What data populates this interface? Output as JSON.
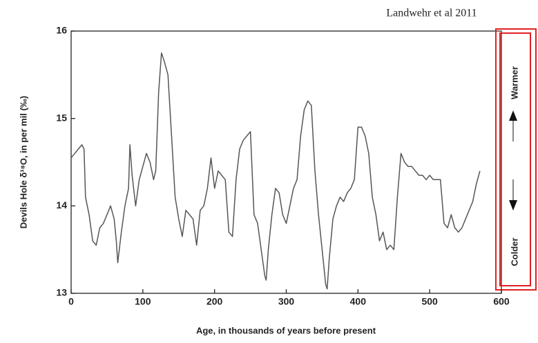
{
  "chart_data": {
    "type": "line",
    "xlabel": "Age, in thousands of years before present",
    "ylabel": "Devils Hole δ¹⁸O, in per mil (‰)",
    "annotations": [
      "Landwehr et al 2011",
      "Warmer",
      "Colder"
    ],
    "color": "#555555",
    "xlim": [
      0,
      600
    ],
    "xticks": [
      0,
      100,
      200,
      300,
      400,
      500,
      600
    ],
    "ylim": [
      13,
      16
    ],
    "yticks": [
      13,
      14,
      15,
      16
    ],
    "x": [
      0,
      5,
      10,
      15,
      18,
      20,
      25,
      30,
      35,
      40,
      45,
      50,
      55,
      60,
      63,
      65,
      70,
      75,
      80,
      82,
      85,
      90,
      95,
      100,
      105,
      110,
      115,
      118,
      122,
      126,
      130,
      135,
      140,
      145,
      150,
      155,
      160,
      165,
      170,
      175,
      180,
      185,
      190,
      195,
      200,
      205,
      210,
      215,
      220,
      225,
      230,
      235,
      240,
      245,
      250,
      255,
      260,
      265,
      270,
      272,
      275,
      280,
      285,
      290,
      295,
      300,
      305,
      310,
      315,
      320,
      325,
      330,
      335,
      340,
      345,
      350,
      355,
      357,
      360,
      365,
      370,
      375,
      380,
      385,
      390,
      395,
      400,
      405,
      410,
      415,
      420,
      425,
      430,
      435,
      440,
      445,
      450,
      455,
      460,
      465,
      470,
      475,
      480,
      485,
      490,
      495,
      500,
      505,
      510,
      515,
      520,
      525,
      530,
      535,
      540,
      545,
      550,
      555,
      560,
      565,
      570
    ],
    "values": [
      14.55,
      14.6,
      14.65,
      14.7,
      14.65,
      14.1,
      13.9,
      13.6,
      13.55,
      13.75,
      13.8,
      13.9,
      14.0,
      13.85,
      13.6,
      13.35,
      13.7,
      14.0,
      14.2,
      14.7,
      14.35,
      14.0,
      14.3,
      14.45,
      14.6,
      14.5,
      14.3,
      14.4,
      15.3,
      15.75,
      15.65,
      15.5,
      14.8,
      14.1,
      13.85,
      13.65,
      13.95,
      13.9,
      13.85,
      13.55,
      13.95,
      14.0,
      14.2,
      14.55,
      14.2,
      14.4,
      14.35,
      14.3,
      13.7,
      13.65,
      14.3,
      14.65,
      14.75,
      14.8,
      14.85,
      13.9,
      13.8,
      13.5,
      13.2,
      13.15,
      13.5,
      13.9,
      14.2,
      14.15,
      13.9,
      13.8,
      14.0,
      14.2,
      14.3,
      14.8,
      15.1,
      15.2,
      15.15,
      14.4,
      13.9,
      13.5,
      13.1,
      13.05,
      13.4,
      13.85,
      14.0,
      14.1,
      14.05,
      14.15,
      14.2,
      14.3,
      14.9,
      14.9,
      14.8,
      14.6,
      14.1,
      13.9,
      13.6,
      13.7,
      13.5,
      13.55,
      13.5,
      14.1,
      14.6,
      14.5,
      14.45,
      14.45,
      14.4,
      14.35,
      14.35,
      14.3,
      14.35,
      14.3,
      14.3,
      14.3,
      13.8,
      13.75,
      13.9,
      13.75,
      13.7,
      13.75,
      13.85,
      13.95,
      14.05,
      14.25,
      14.4
    ]
  }
}
